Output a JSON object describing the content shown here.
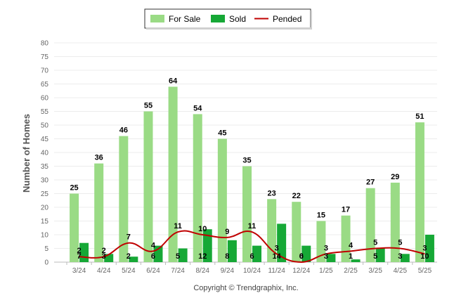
{
  "chart_data": {
    "type": "bar",
    "categories": [
      "3/24",
      "4/24",
      "5/24",
      "6/24",
      "7/24",
      "8/24",
      "9/24",
      "10/24",
      "11/24",
      "12/24",
      "1/25",
      "2/25",
      "3/25",
      "4/25",
      "5/25"
    ],
    "series": [
      {
        "name": "For Sale",
        "kind": "bar",
        "color": "#9adb85",
        "values": [
          25,
          36,
          46,
          55,
          64,
          54,
          45,
          35,
          23,
          22,
          15,
          17,
          27,
          29,
          51
        ]
      },
      {
        "name": "Sold",
        "kind": "bar",
        "color": "#16a836",
        "values": [
          7,
          3,
          2,
          6,
          5,
          12,
          8,
          6,
          14,
          6,
          3,
          1,
          5,
          3,
          10
        ]
      },
      {
        "name": "Pended",
        "kind": "line",
        "color": "#c00000",
        "values": [
          2,
          2,
          7,
          4,
          11,
          10,
          9,
          11,
          3,
          0,
          3,
          4,
          5,
          5,
          3
        ]
      }
    ],
    "ylabel": "Number of Homes",
    "xlabel": "",
    "ylim": [
      0,
      80
    ],
    "ytick_step": 5,
    "grid": true,
    "legend_position": "top-center",
    "data_labels": true
  },
  "footer": {
    "copyright": "Copyright © Trendgraphix, Inc."
  }
}
